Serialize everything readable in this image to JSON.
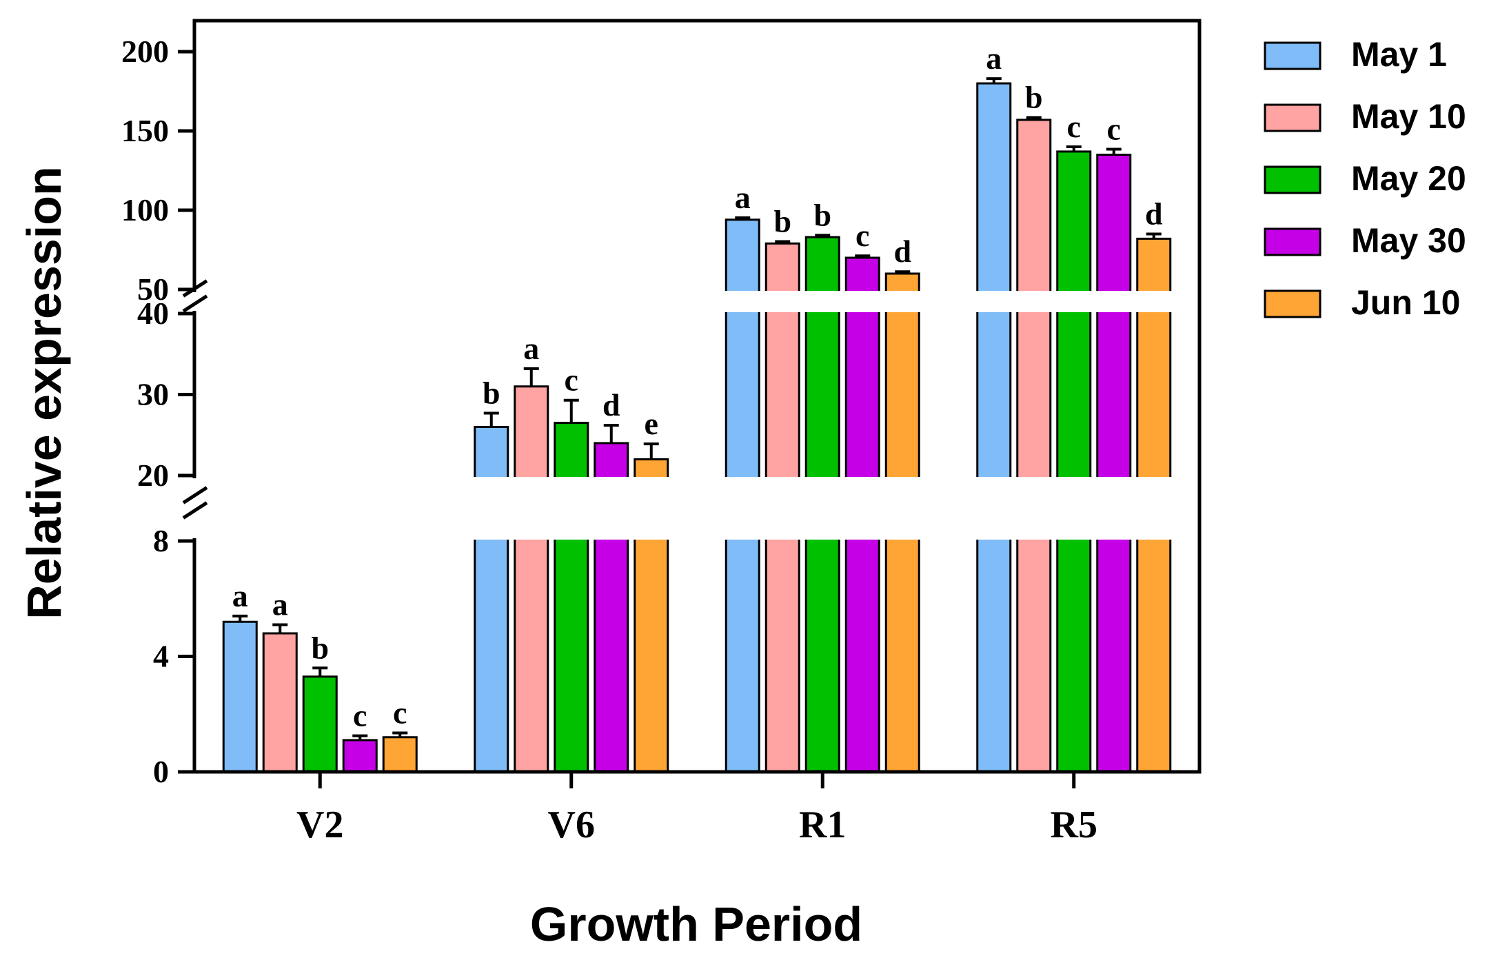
{
  "chart_data": {
    "type": "bar",
    "title": "",
    "xlabel": "Growth Period",
    "ylabel": "Relative expression",
    "categories": [
      "V2",
      "V6",
      "R1",
      "R5"
    ],
    "series": [
      {
        "name": "May 1",
        "color": "#7fbcf8",
        "values": [
          5.2,
          26,
          94,
          180
        ],
        "errors": [
          0.2,
          1.7,
          1.2,
          3
        ],
        "letters": [
          "a",
          "b",
          "a",
          "a"
        ]
      },
      {
        "name": "May 10",
        "color": "#ffa3a3",
        "values": [
          4.8,
          31,
          79,
          157
        ],
        "errors": [
          0.3,
          2.2,
          1.2,
          1.5
        ],
        "letters": [
          "a",
          "a",
          "b",
          "b"
        ]
      },
      {
        "name": "May 20",
        "color": "#00c000",
        "values": [
          3.3,
          26.5,
          83,
          137
        ],
        "errors": [
          0.3,
          2.8,
          1.2,
          3
        ],
        "letters": [
          "b",
          "c",
          "b",
          "c"
        ]
      },
      {
        "name": "May 30",
        "color": "#c600e6",
        "values": [
          1.1,
          24,
          70,
          135
        ],
        "errors": [
          0.15,
          2.2,
          1.2,
          3.5
        ],
        "letters": [
          "c",
          "d",
          "c",
          "c"
        ]
      },
      {
        "name": "Jun 10",
        "color": "#ffa535",
        "values": [
          1.2,
          22,
          60,
          82
        ],
        "errors": [
          0.15,
          1.9,
          1.2,
          3
        ],
        "letters": [
          "c",
          "e",
          "d",
          "d"
        ]
      }
    ],
    "y_segments": [
      {
        "range": [
          0,
          8
        ],
        "ticks": [
          "0",
          "4",
          "8"
        ]
      },
      {
        "range": [
          20,
          40
        ],
        "ticks": [
          "20",
          "30",
          "40"
        ]
      },
      {
        "range": [
          50,
          200
        ],
        "ticks": [
          "50",
          "100",
          "150",
          "200"
        ]
      }
    ],
    "legend_position": "right"
  }
}
